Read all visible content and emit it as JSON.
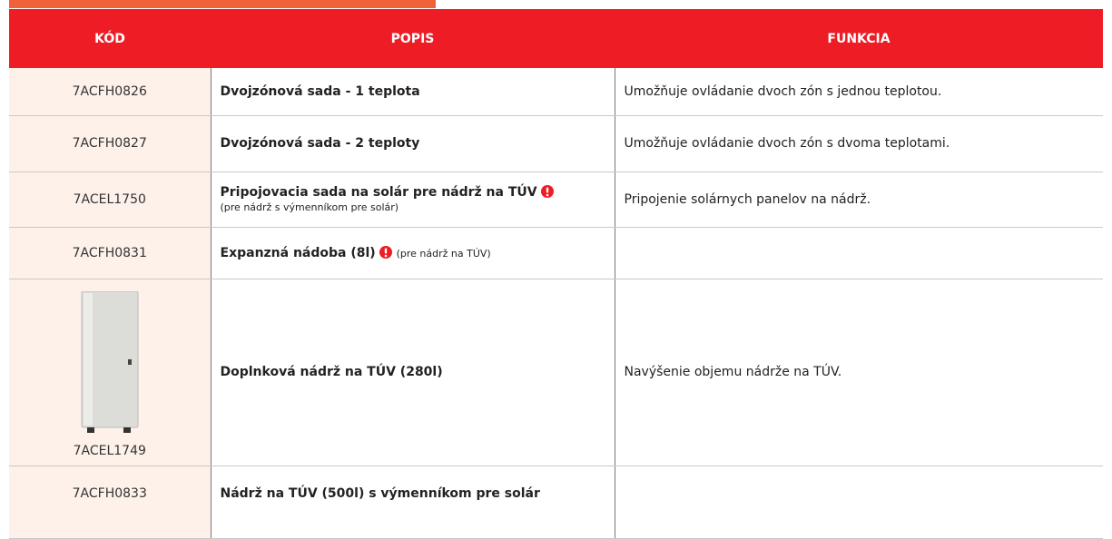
{
  "table": {
    "header": [
      "KÓD",
      "POPIS",
      "FUNKCIA"
    ],
    "rows": [
      {
        "code": "7ACFH0826",
        "description": "Dvojzónová sada - 1 teplota",
        "function": "Umožňuje ovládanie dvoch zón s jednou teplotou."
      },
      {
        "code": "7ACFH0827",
        "description": "Dvojzónová sada - 2 teploty",
        "function": "Umožňuje ovládanie dvoch zón s dvoma teplotami."
      },
      {
        "code": "7ACEL1750",
        "description": "Pripojovacia sada na solár pre nádrž na TÚV",
        "note": "(pre nádrž s výmenníkom pre solár)",
        "function": "Pripojenie solárnych panelov na nádrž."
      },
      {
        "code": "7ACFH0831",
        "description": "Expanzná nádoba (8l)",
        "note": "(pre nádrž na TÚV)"
      },
      {
        "code": "7ACEL1749",
        "description": "Doplnková nádrž na TÚV (280l)",
        "function": "Navýšenie objemu nádrže na TÚV."
      },
      {
        "code": "7ACFH0833",
        "description": "Nádrž na TÚV (500l) s výmenníkom pre solár"
      }
    ]
  }
}
